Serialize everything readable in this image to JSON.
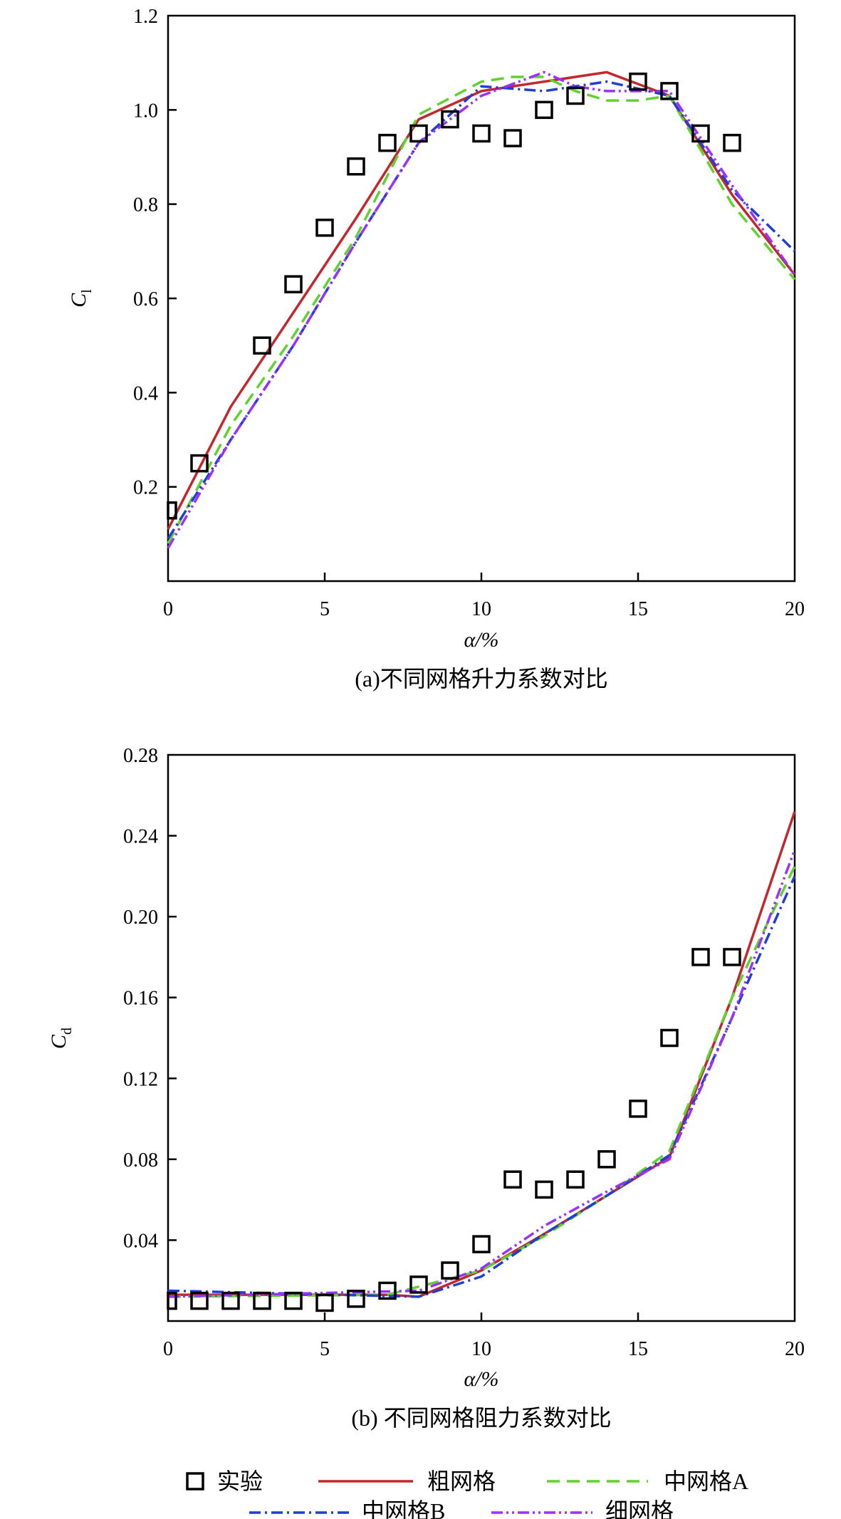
{
  "chart_data": [
    {
      "type": "line",
      "caption": "(a)不同网格升力系数对比",
      "xlabel": "α/%",
      "ylabel": "C",
      "ylabel_sub": "l",
      "xlim": [
        0,
        20
      ],
      "ylim": [
        0,
        1.2
      ],
      "xticks": [
        0,
        5,
        10,
        15,
        20
      ],
      "yticks": [
        0.2,
        0.4,
        0.6,
        0.8,
        1.0,
        1.2
      ],
      "ytick_labels": [
        "0.2",
        "0.4",
        "0.6",
        "0.8",
        "1.0",
        "1.2"
      ],
      "grid": false,
      "experiment": {
        "name": "实验",
        "x": [
          0,
          1,
          3,
          4,
          5,
          6,
          7,
          8,
          9,
          10,
          11,
          12,
          13,
          15,
          16,
          17,
          18
        ],
        "y": [
          0.15,
          0.25,
          0.5,
          0.63,
          0.75,
          0.88,
          0.93,
          0.95,
          0.98,
          0.95,
          0.94,
          1.0,
          1.03,
          1.06,
          1.04,
          0.95,
          0.93
        ]
      },
      "series": [
        {
          "name": "粗网格",
          "x": [
            0,
            2,
            4,
            6,
            8,
            10,
            12,
            14,
            16,
            18,
            20
          ],
          "y": [
            0.11,
            0.37,
            0.57,
            0.77,
            0.98,
            1.04,
            1.06,
            1.08,
            1.03,
            0.82,
            0.65
          ]
        },
        {
          "name": "中网格A",
          "x": [
            0,
            2,
            4,
            6,
            8,
            10,
            11,
            12,
            13,
            14,
            15,
            16,
            18,
            20
          ],
          "y": [
            0.08,
            0.33,
            0.52,
            0.73,
            0.99,
            1.06,
            1.07,
            1.07,
            1.04,
            1.02,
            1.02,
            1.03,
            0.8,
            0.64
          ]
        },
        {
          "name": "中网格B",
          "x": [
            0,
            2,
            4,
            6,
            8,
            10,
            12,
            14,
            16,
            18,
            20
          ],
          "y": [
            0.09,
            0.3,
            0.5,
            0.72,
            0.93,
            1.05,
            1.04,
            1.06,
            1.03,
            0.83,
            0.7
          ]
        },
        {
          "name": "细网格",
          "x": [
            0,
            2,
            4,
            6,
            8,
            10,
            12,
            13,
            14,
            16,
            18,
            20
          ],
          "y": [
            0.07,
            0.3,
            0.5,
            0.72,
            0.93,
            1.03,
            1.08,
            1.05,
            1.04,
            1.04,
            0.84,
            0.65
          ]
        }
      ]
    },
    {
      "type": "line",
      "caption": "(b) 不同网格阻力系数对比",
      "xlabel": "α/%",
      "ylabel": "C",
      "ylabel_sub": "d",
      "xlim": [
        0,
        20
      ],
      "ylim": [
        0,
        0.28
      ],
      "xticks": [
        0,
        5,
        10,
        15,
        20
      ],
      "yticks": [
        0.04,
        0.08,
        0.12,
        0.16,
        0.2,
        0.24,
        0.28
      ],
      "ytick_labels": [
        "0.04",
        "0.08",
        "0.12",
        "0.16",
        "0.20",
        "0.24",
        "0.28"
      ],
      "grid": false,
      "experiment": {
        "name": "实验",
        "x": [
          0,
          1,
          2,
          3,
          4,
          5,
          6,
          7,
          8,
          9,
          10,
          11,
          12,
          13,
          14,
          15,
          16,
          17,
          18
        ],
        "y": [
          0.01,
          0.01,
          0.01,
          0.01,
          0.01,
          0.009,
          0.011,
          0.015,
          0.018,
          0.025,
          0.038,
          0.07,
          0.065,
          0.07,
          0.08,
          0.105,
          0.14,
          0.18,
          0.18
        ]
      },
      "series": [
        {
          "name": "粗网格",
          "x": [
            0,
            7,
            8,
            10,
            12,
            14,
            16,
            18,
            20
          ],
          "y": [
            0.013,
            0.013,
            0.012,
            0.025,
            0.043,
            0.062,
            0.081,
            0.16,
            0.252
          ]
        },
        {
          "name": "中网格A",
          "x": [
            0,
            7,
            8,
            10,
            12,
            14,
            16,
            18,
            20
          ],
          "y": [
            0.012,
            0.013,
            0.017,
            0.025,
            0.042,
            0.062,
            0.084,
            0.16,
            0.225
          ]
        },
        {
          "name": "中网格B",
          "x": [
            0,
            8,
            10,
            12,
            14,
            16,
            18,
            20
          ],
          "y": [
            0.015,
            0.012,
            0.022,
            0.043,
            0.062,
            0.082,
            0.15,
            0.22
          ]
        },
        {
          "name": "细网格",
          "x": [
            0,
            8,
            10,
            12,
            14,
            16,
            18,
            20
          ],
          "y": [
            0.012,
            0.015,
            0.026,
            0.047,
            0.064,
            0.08,
            0.15,
            0.233
          ]
        }
      ]
    }
  ],
  "legend": {
    "placement": "bottom",
    "items": [
      {
        "label": "实验",
        "marker": "square",
        "color": "#000000"
      },
      {
        "label": "粗网格",
        "style": "solid",
        "color": "#c1272d"
      },
      {
        "label": "中网格A",
        "style": "dashed",
        "color": "#5fd22d"
      },
      {
        "label": "中网格B",
        "style": "dashdot",
        "color": "#1f3fd0"
      },
      {
        "label": "细网格",
        "style": "dashdotdot",
        "color": "#9b30ff"
      }
    ]
  },
  "series_styles": {
    "粗网格": {
      "color": "#c1272d",
      "dash": ""
    },
    "中网格A": {
      "color": "#5fd22d",
      "dash": "18 10"
    },
    "中网格B": {
      "color": "#1f3fd0",
      "dash": "16 6 3 6"
    },
    "细网格": {
      "color": "#9b30ff",
      "dash": "16 5 3 5 3 5"
    }
  }
}
